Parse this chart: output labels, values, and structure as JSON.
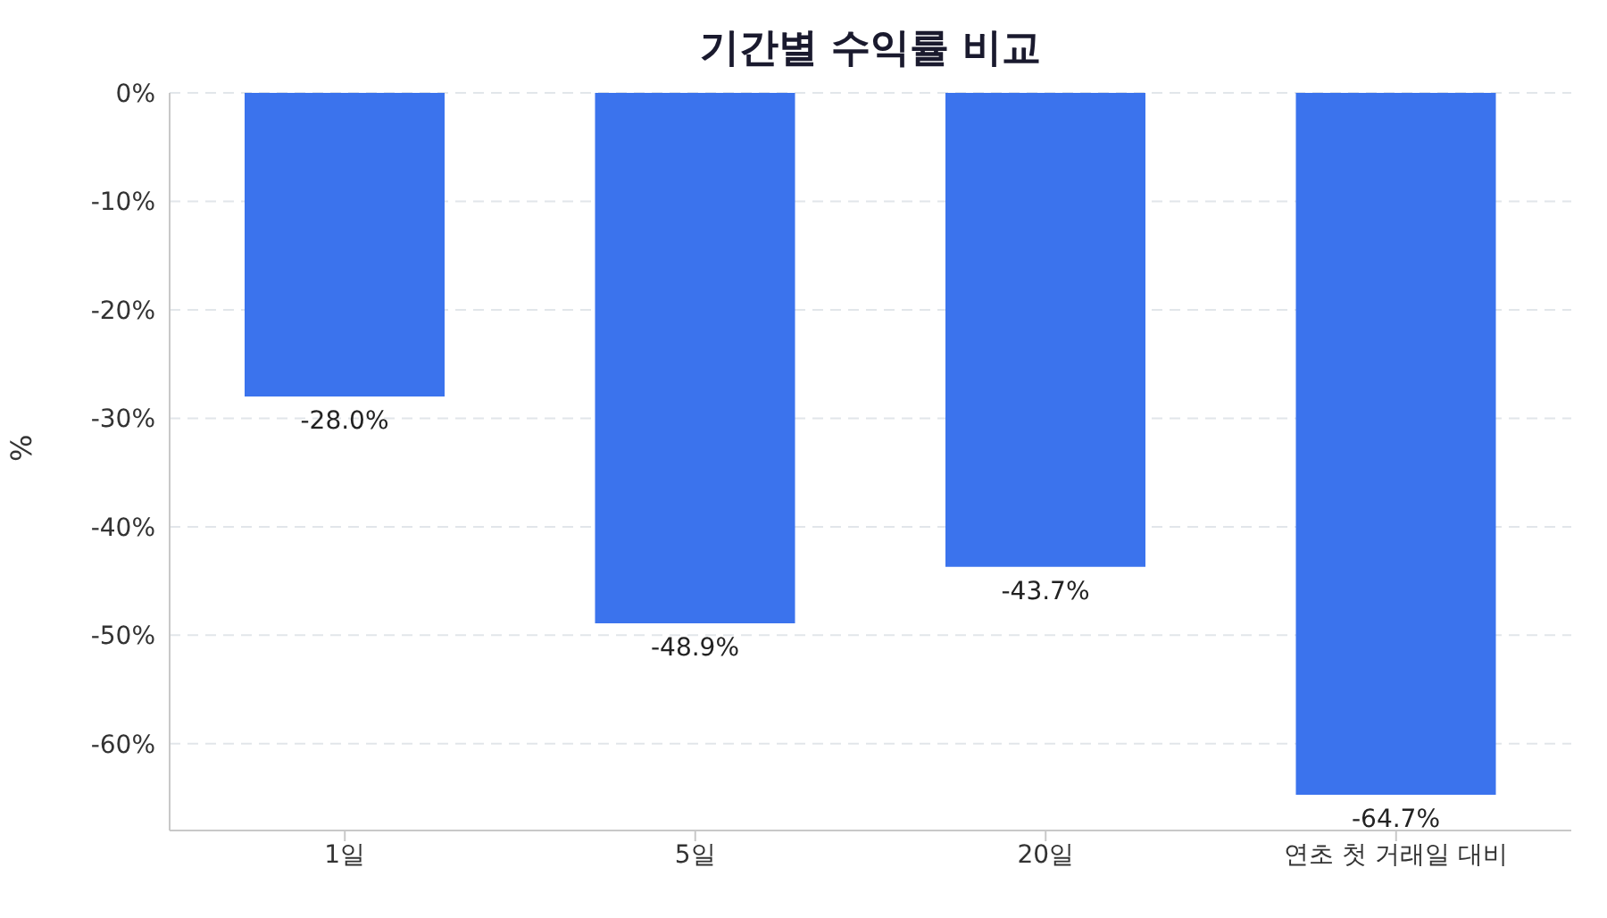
{
  "chart_data": {
    "type": "bar",
    "title": "기간별 수익률 비교",
    "ylabel": "%",
    "categories": [
      "1일",
      "5일",
      "20일",
      "연초 첫 거래일 대비"
    ],
    "values": [
      -28.0,
      -48.9,
      -43.7,
      -64.7
    ],
    "value_labels": [
      "-28.0%",
      "-48.9%",
      "-43.7%",
      "-64.7%"
    ],
    "color": "#3b73ed",
    "ylim": [
      -68,
      0
    ],
    "yticks": [
      {
        "value": 0,
        "label": "0%"
      },
      {
        "value": -10,
        "label": "-10%"
      },
      {
        "value": -20,
        "label": "-20%"
      },
      {
        "value": -30,
        "label": "-30%"
      },
      {
        "value": -40,
        "label": "-40%"
      },
      {
        "value": -50,
        "label": "-50%"
      },
      {
        "value": -60,
        "label": "-60%"
      }
    ],
    "grid": "y"
  }
}
